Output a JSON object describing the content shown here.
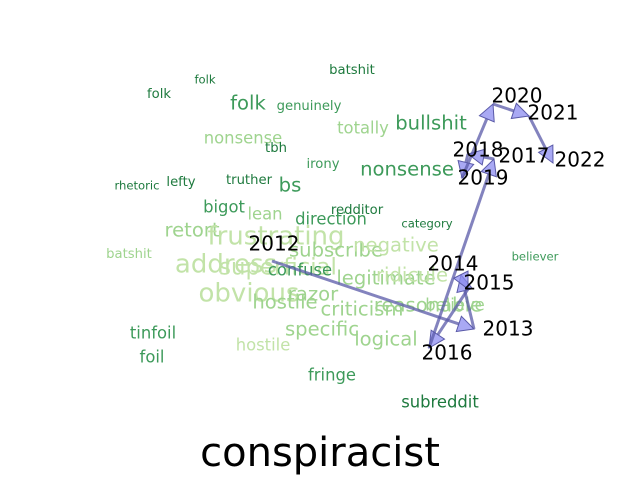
{
  "chart_data": {
    "type": "word-trajectory",
    "title": "conspiracist",
    "arrow_color": "#8c8cf0",
    "arrow_edge_color": "#5a5aa8",
    "colors": {
      "dark": "#1e7a3e",
      "mid": "#3d9a5a",
      "light": "#9fd48f",
      "pale": "#c2e3a8"
    },
    "years": [
      "2012",
      "2013",
      "2014",
      "2015",
      "2016",
      "2017",
      "2018",
      "2019",
      "2020",
      "2021",
      "2022"
    ],
    "path": [
      "2012",
      "2013",
      "2014",
      "2015",
      "2016",
      "2017",
      "2018",
      "2019",
      "2020",
      "2021",
      "2022"
    ],
    "words": [
      {
        "text": "batshit",
        "tone": "dark",
        "weight": 1
      },
      {
        "text": "folk",
        "tone": "dark",
        "weight": 0.5
      },
      {
        "text": "folk",
        "tone": "dark",
        "weight": 1
      },
      {
        "text": "folk",
        "tone": "mid",
        "weight": 3
      },
      {
        "text": "genuinely",
        "tone": "mid",
        "weight": 1
      },
      {
        "text": "nonsense",
        "tone": "light",
        "weight": 2
      },
      {
        "text": "totally",
        "tone": "light",
        "weight": 2
      },
      {
        "text": "bullshit",
        "tone": "mid",
        "weight": 3
      },
      {
        "text": "tbh",
        "tone": "dark",
        "weight": 1
      },
      {
        "text": "irony",
        "tone": "mid",
        "weight": 1
      },
      {
        "text": "nonsense",
        "tone": "mid",
        "weight": 3
      },
      {
        "text": "rhetoric",
        "tone": "dark",
        "weight": 0.5
      },
      {
        "text": "lefty",
        "tone": "dark",
        "weight": 1
      },
      {
        "text": "truther",
        "tone": "dark",
        "weight": 1
      },
      {
        "text": "bs",
        "tone": "mid",
        "weight": 3
      },
      {
        "text": "bigot",
        "tone": "mid",
        "weight": 2
      },
      {
        "text": "lean",
        "tone": "light",
        "weight": 2
      },
      {
        "text": "redditor",
        "tone": "dark",
        "weight": 1
      },
      {
        "text": "direction",
        "tone": "mid",
        "weight": 2
      },
      {
        "text": "category",
        "tone": "dark",
        "weight": 0.5
      },
      {
        "text": "retort",
        "tone": "light",
        "weight": 3
      },
      {
        "text": "frustrating",
        "tone": "pale",
        "weight": 5
      },
      {
        "text": "subscribe",
        "tone": "light",
        "weight": 3
      },
      {
        "text": "negative",
        "tone": "pale",
        "weight": 3
      },
      {
        "text": "batshit",
        "tone": "light",
        "weight": 1
      },
      {
        "text": "believer",
        "tone": "mid",
        "weight": 0.5
      },
      {
        "text": "address",
        "tone": "pale",
        "weight": 5
      },
      {
        "text": "superficial",
        "tone": "pale",
        "weight": 4
      },
      {
        "text": "confuse",
        "tone": "mid",
        "weight": 2
      },
      {
        "text": "legitimate",
        "tone": "light",
        "weight": 3
      },
      {
        "text": "ridicule",
        "tone": "pale",
        "weight": 3
      },
      {
        "text": "obvious",
        "tone": "pale",
        "weight": 5
      },
      {
        "text": "razor",
        "tone": "light",
        "weight": 3
      },
      {
        "text": "hostile",
        "tone": "light",
        "weight": 3
      },
      {
        "text": "criticism",
        "tone": "light",
        "weight": 3
      },
      {
        "text": "reasonable",
        "tone": "light",
        "weight": 3
      },
      {
        "text": "believe",
        "tone": "light",
        "weight": 2
      },
      {
        "text": "tinfoil",
        "tone": "mid",
        "weight": 2
      },
      {
        "text": "foil",
        "tone": "mid",
        "weight": 2
      },
      {
        "text": "hostile",
        "tone": "pale",
        "weight": 2
      },
      {
        "text": "specific",
        "tone": "light",
        "weight": 3
      },
      {
        "text": "logical",
        "tone": "light",
        "weight": 3
      },
      {
        "text": "fringe",
        "tone": "mid",
        "weight": 2
      },
      {
        "text": "subreddit",
        "tone": "dark",
        "weight": 2
      }
    ]
  }
}
